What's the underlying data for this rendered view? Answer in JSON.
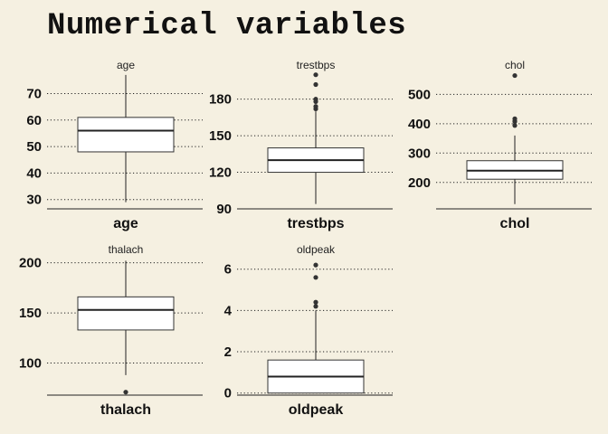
{
  "page": {
    "title": "Numerical variables",
    "background": "#f5f0e1"
  },
  "chart_data": [
    {
      "type": "box",
      "title": "age",
      "xlabel": "age",
      "ylim": [
        26.5,
        78
      ],
      "yticks": [
        30,
        40,
        50,
        60,
        70
      ],
      "grid": "horizontal-dotted",
      "box": {
        "min": 29,
        "q1": 48,
        "median": 56,
        "q3": 61,
        "max": 77
      },
      "outliers": []
    },
    {
      "type": "box",
      "title": "trestbps",
      "xlabel": "trestbps",
      "ylim": [
        90,
        202
      ],
      "yticks": [
        90,
        120,
        150,
        180
      ],
      "grid": "horizontal-dotted",
      "box": {
        "min": 94,
        "q1": 120,
        "median": 130,
        "q3": 140,
        "max": 170
      },
      "outliers": [
        172,
        174,
        178,
        180,
        192,
        200
      ]
    },
    {
      "type": "box",
      "title": "chol",
      "xlabel": "chol",
      "ylim": [
        110,
        575
      ],
      "yticks": [
        200,
        300,
        400,
        500
      ],
      "grid": "horizontal-dotted",
      "box": {
        "min": 126,
        "q1": 211,
        "median": 240,
        "q3": 274,
        "max": 360
      },
      "outliers": [
        394,
        407,
        409,
        417,
        564
      ]
    },
    {
      "type": "box",
      "title": "thalach",
      "xlabel": "thalach",
      "ylim": [
        68,
        206
      ],
      "yticks": [
        100,
        150,
        200
      ],
      "grid": "horizontal-dotted",
      "box": {
        "min": 88,
        "q1": 133,
        "median": 153,
        "q3": 166,
        "max": 202
      },
      "outliers": [
        71
      ]
    },
    {
      "type": "box",
      "title": "oldpeak",
      "xlabel": "oldpeak",
      "ylim": [
        -0.1,
        6.6
      ],
      "yticks": [
        0,
        2,
        4,
        6
      ],
      "grid": "horizontal-dotted",
      "box": {
        "min": 0,
        "q1": 0,
        "median": 0.8,
        "q3": 1.6,
        "max": 4.0
      },
      "outliers": [
        4.2,
        4.4,
        5.6,
        6.2
      ]
    }
  ]
}
